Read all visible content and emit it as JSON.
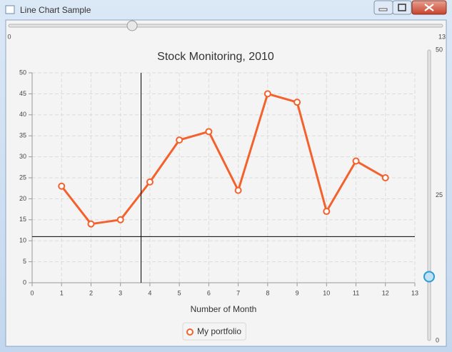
{
  "window": {
    "title": "Line Chart Sample"
  },
  "h_slider": {
    "min": 0,
    "max": 13,
    "value": 3.7
  },
  "v_slider": {
    "min": 0,
    "max": 50,
    "ticks": [
      0,
      25,
      50
    ],
    "value": 11
  },
  "chart_data": {
    "type": "line",
    "title": "Stock Monitoring, 2010",
    "x_label": "Number of Month",
    "x": [
      1,
      2,
      3,
      4,
      5,
      6,
      7,
      8,
      9,
      10,
      11,
      12
    ],
    "series": [
      {
        "name": "My portfolio",
        "color": "#f3622d",
        "values": [
          23,
          14,
          15,
          24,
          34,
          36,
          22,
          45,
          43,
          17,
          29,
          25
        ]
      }
    ],
    "xlim": [
      0,
      13
    ],
    "xticks": [
      0,
      1,
      2,
      3,
      4,
      5,
      6,
      7,
      8,
      9,
      10,
      11,
      12,
      13
    ],
    "ylim": [
      0,
      50
    ],
    "yticks": [
      0,
      5,
      10,
      15,
      20,
      25,
      30,
      35,
      40,
      45,
      50
    ],
    "grid": true,
    "legend": "bottom"
  }
}
